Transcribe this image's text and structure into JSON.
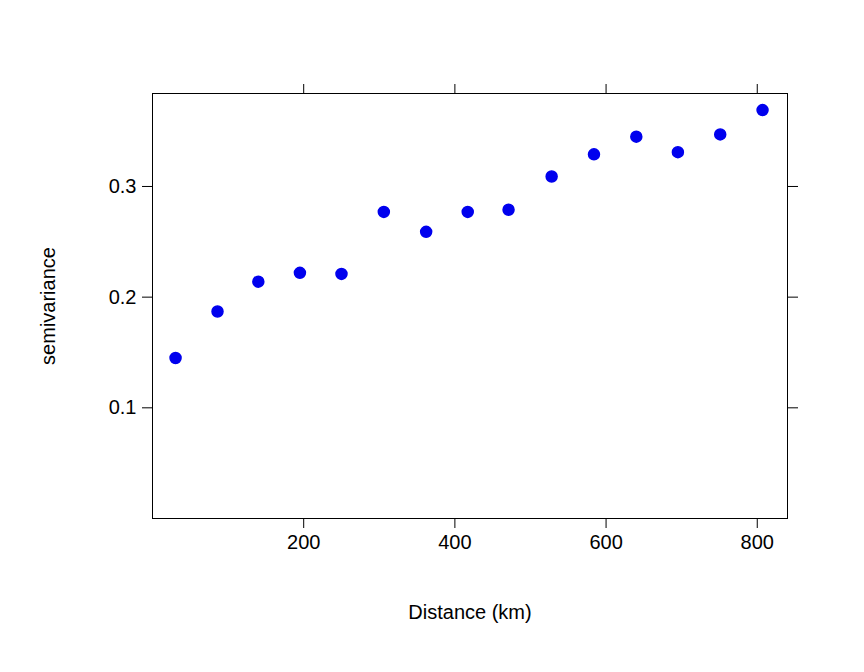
{
  "chart_data": {
    "type": "scatter",
    "x_label": "Distance (km)",
    "y_label": "semivariance",
    "x": [
      30.5,
      86,
      140,
      195,
      250,
      306,
      362,
      417,
      471,
      528,
      584,
      640,
      695,
      751,
      807
    ],
    "values": [
      0.145,
      0.187,
      0.214,
      0.222,
      0.221,
      0.277,
      0.259,
      0.277,
      0.279,
      0.309,
      0.329,
      0.345,
      0.331,
      0.347,
      0.369
    ],
    "color": "#0000ee",
    "marker": "circle",
    "xlim": [
      0,
      840
    ],
    "ylim": [
      0,
      0.384
    ],
    "xticks": [
      200,
      400,
      600,
      800
    ],
    "yticks": [
      0.1,
      0.2,
      0.3
    ],
    "grid": false
  }
}
